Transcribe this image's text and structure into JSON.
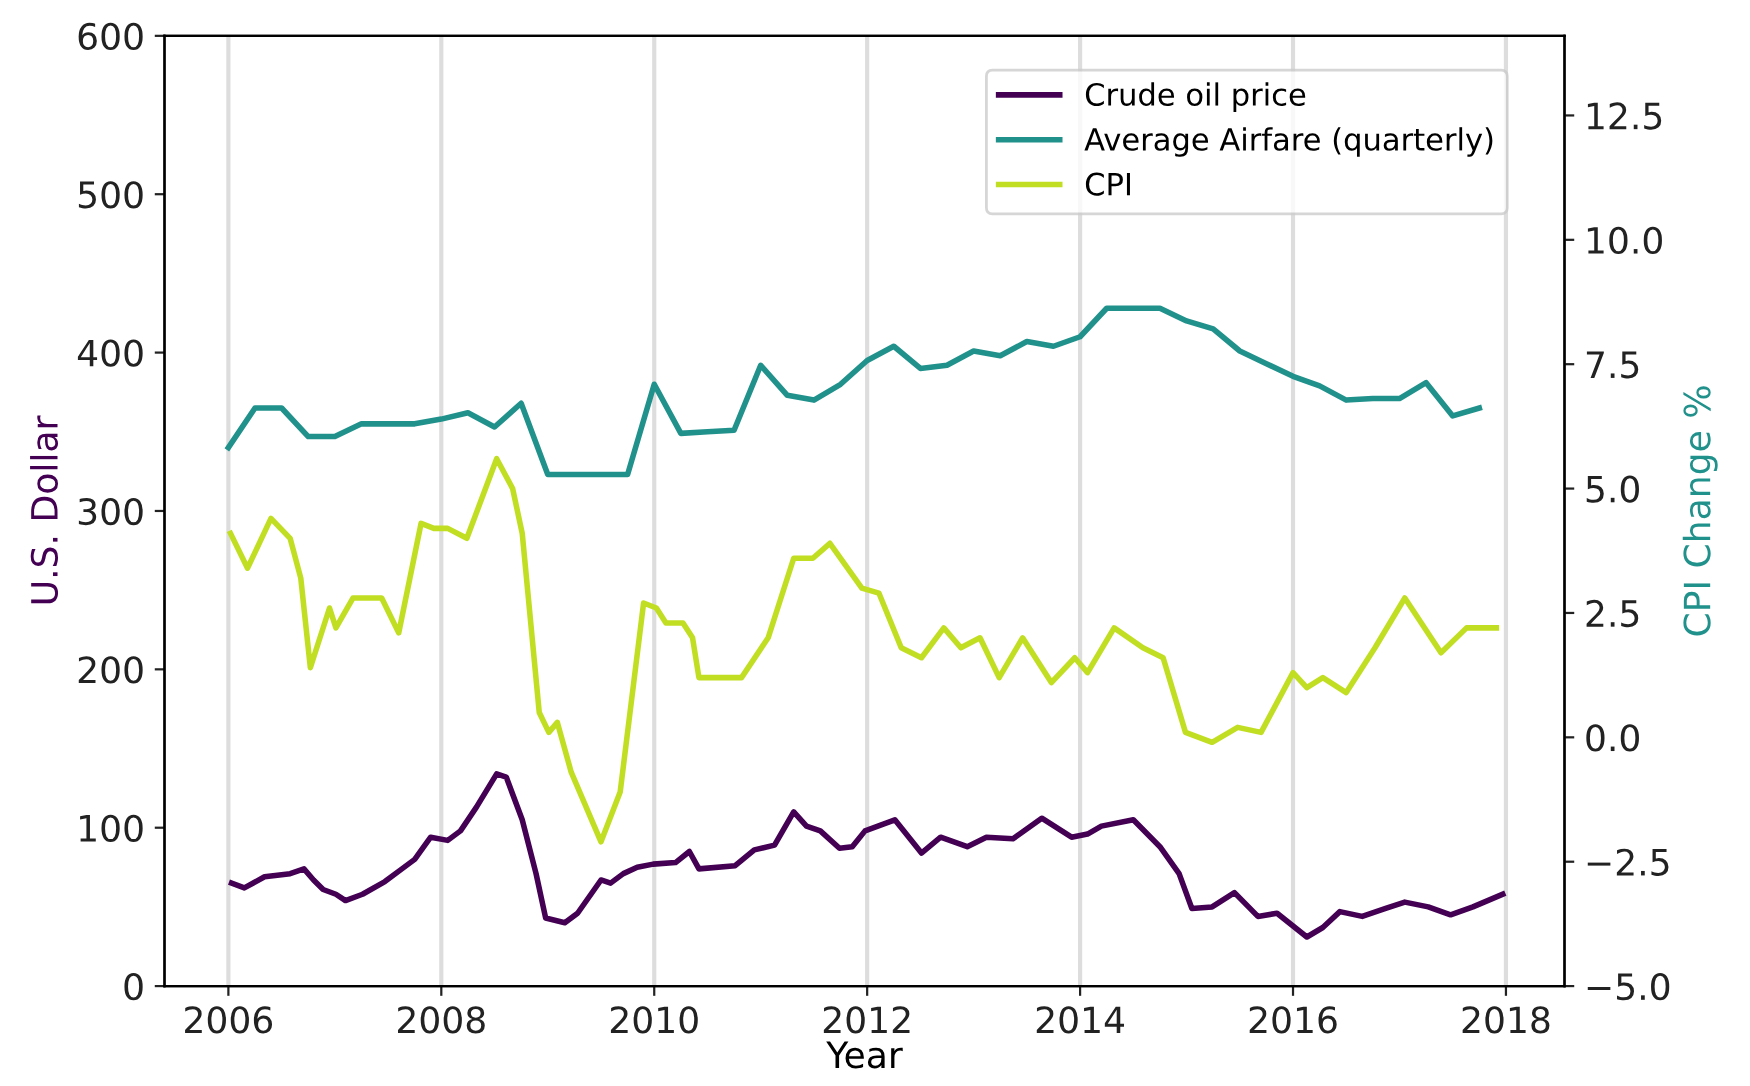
{
  "chart_data": {
    "type": "line",
    "xlabel": "Year",
    "ylabel": "U.S. Dollar",
    "y2label": "CPI Change %",
    "xlim": [
      2005.4,
      2018.55
    ],
    "xticks": [
      2006,
      2008,
      2010,
      2012,
      2014,
      2016,
      2018
    ],
    "ylim": [
      0,
      600
    ],
    "yticks": [
      0,
      100,
      200,
      300,
      400,
      500,
      600
    ],
    "y2lim": [
      -5,
      14.1
    ],
    "y2ticks": [
      {
        "value": -5,
        "label": "−5.0"
      },
      {
        "value": -2.5,
        "label": "−2.5"
      },
      {
        "value": 0,
        "label": "0.0"
      },
      {
        "value": 2.5,
        "label": "2.5"
      },
      {
        "value": 5,
        "label": "5.0"
      },
      {
        "value": 7.5,
        "label": "7.5"
      },
      {
        "value": 10,
        "label": "10.0"
      },
      {
        "value": 12.5,
        "label": "12.5"
      }
    ],
    "grid": "x",
    "legend": "top right",
    "marker": "none",
    "line_style": "solid",
    "series": [
      {
        "name": "Crude oil price",
        "color": "#440154",
        "x": [
          2006.03,
          2006.15,
          2006.34,
          2006.58,
          2006.71,
          2006.8,
          2006.89,
          2007.01,
          2007.1,
          2007.26,
          2007.47,
          2007.63,
          2007.75,
          2007.9,
          2008.06,
          2008.18,
          2008.33,
          2008.52,
          2008.61,
          2008.76,
          2008.89,
          2008.98,
          2009.16,
          2009.28,
          2009.5,
          2009.59,
          2009.71,
          2009.84,
          2009.99,
          2010.2,
          2010.33,
          2010.42,
          2010.76,
          2010.94,
          2011.13,
          2011.31,
          2011.43,
          2011.56,
          2011.74,
          2011.86,
          2011.98,
          2012.26,
          2012.51,
          2012.69,
          2012.94,
          2013.12,
          2013.37,
          2013.64,
          2013.92,
          2014.07,
          2014.2,
          2014.5,
          2014.75,
          2014.93,
          2015.05,
          2015.24,
          2015.45,
          2015.67,
          2015.85,
          2016.13,
          2016.28,
          2016.44,
          2016.65,
          2016.87,
          2017.05,
          2017.27,
          2017.48,
          2017.69,
          2017.97
        ],
        "values": [
          65,
          62,
          69,
          71,
          74,
          67,
          61,
          58,
          54,
          58,
          66,
          74,
          80,
          94,
          92,
          98,
          113,
          134,
          132,
          105,
          71,
          43,
          40,
          46,
          67,
          65,
          71,
          75,
          77,
          78,
          85,
          74,
          76,
          86,
          89,
          110,
          101,
          98,
          87,
          88,
          98,
          105,
          84,
          94,
          88,
          94,
          93,
          106,
          94,
          96,
          101,
          105,
          88,
          71,
          49,
          50,
          59,
          44,
          46,
          31,
          37,
          47,
          44,
          49,
          53,
          50,
          45,
          50,
          58
        ]
      },
      {
        "name": "Average Airfare (quarterly)",
        "color": "#21918c",
        "x": [
          2006,
          2006.25,
          2006.5,
          2006.75,
          2007,
          2007.25,
          2007.5,
          2007.75,
          2008,
          2008.25,
          2008.5,
          2008.75,
          2009,
          2009.25,
          2009.5,
          2009.75,
          2010,
          2010.25,
          2010.5,
          2010.75,
          2011,
          2011.25,
          2011.5,
          2011.75,
          2012,
          2012.25,
          2012.5,
          2012.75,
          2013,
          2013.25,
          2013.5,
          2013.75,
          2014,
          2014.25,
          2014.5,
          2014.75,
          2015,
          2015.25,
          2015.5,
          2015.75,
          2016,
          2016.25,
          2016.5,
          2016.75,
          2017,
          2017.25,
          2017.5,
          2017.75
        ],
        "values": [
          340,
          365,
          365,
          347,
          347,
          355,
          355,
          355,
          358,
          362,
          353,
          368,
          323,
          323,
          323,
          323,
          380,
          349,
          350,
          351,
          392,
          373,
          370,
          380,
          395,
          404,
          390,
          392,
          401,
          398,
          407,
          404,
          410,
          428,
          428,
          428,
          420,
          415,
          401,
          393,
          385,
          379,
          370,
          371,
          371,
          381,
          360,
          365
        ]
      },
      {
        "name": "CPI",
        "color": "#c2de22",
        "axis": "y2",
        "x": [
          2006.02,
          2006.18,
          2006.4,
          2006.58,
          2006.68,
          2006.77,
          2006.95,
          2007.01,
          2007.17,
          2007.44,
          2007.6,
          2007.81,
          2007.93,
          2008.06,
          2008.24,
          2008.52,
          2008.67,
          2008.76,
          2008.92,
          2009.01,
          2009.09,
          2009.22,
          2009.5,
          2009.68,
          2009.9,
          2010.02,
          2010.11,
          2010.27,
          2010.36,
          2010.42,
          2010.82,
          2011.07,
          2011.31,
          2011.49,
          2011.65,
          2011.95,
          2012.11,
          2012.32,
          2012.51,
          2012.72,
          2012.88,
          2013.06,
          2013.24,
          2013.46,
          2013.73,
          2013.95,
          2014.07,
          2014.32,
          2014.59,
          2014.78,
          2014.99,
          2015.24,
          2015.48,
          2015.7,
          2016.0,
          2016.13,
          2016.28,
          2016.5,
          2016.77,
          2017.05,
          2017.39,
          2017.63,
          2017.91
        ],
        "values": [
          4.1,
          3.4,
          4.4,
          4.0,
          3.2,
          1.4,
          2.6,
          2.2,
          2.8,
          2.8,
          2.1,
          4.3,
          4.2,
          4.2,
          4.0,
          5.6,
          5.0,
          4.1,
          0.5,
          0.1,
          0.3,
          -0.7,
          -2.1,
          -1.1,
          2.7,
          2.6,
          2.3,
          2.3,
          2.0,
          1.2,
          1.2,
          2.0,
          3.6,
          3.6,
          3.9,
          3.0,
          2.9,
          1.8,
          1.6,
          2.2,
          1.8,
          2.0,
          1.2,
          2.0,
          1.1,
          1.6,
          1.3,
          2.2,
          1.8,
          1.6,
          0.1,
          -0.1,
          0.2,
          0.1,
          1.3,
          1.0,
          1.2,
          0.9,
          1.8,
          2.8,
          1.7,
          2.2,
          2.2
        ]
      }
    ]
  }
}
